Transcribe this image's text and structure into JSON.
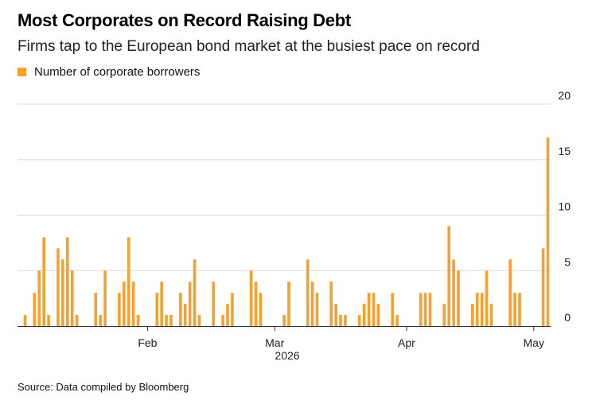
{
  "title": "Most Corporates on Record Raising Debt",
  "subtitle": "Firms tap to the European bond market at the busiest pace on record",
  "source": "Source: Data compiled by Bloomberg",
  "colors": {
    "bar": "#f5a030",
    "grid": "#d9d9d9",
    "axis": "#333333"
  },
  "chart_data": {
    "type": "bar",
    "legend": [
      "Number of corporate borrowers"
    ],
    "legend_position": "top-left",
    "xlabel": "2026",
    "ylabel": "",
    "ylim": [
      0,
      20
    ],
    "y_ticks": [
      0,
      5,
      10,
      15,
      20
    ],
    "grid": true,
    "month_ticks": [
      {
        "label": "Feb",
        "day": 26
      },
      {
        "label": "Mar",
        "day": 53
      },
      {
        "label": "Apr",
        "day": 81
      },
      {
        "label": "May",
        "day": 108
      }
    ],
    "series": [
      {
        "name": "Number of corporate borrowers",
        "values": [
          1,
          0,
          3,
          5,
          8,
          1,
          0,
          7,
          6,
          8,
          5,
          1,
          0,
          0,
          0,
          3,
          1,
          5,
          0,
          0,
          3,
          4,
          8,
          4,
          1,
          0,
          0,
          0,
          3,
          4,
          1,
          1,
          0,
          3,
          2,
          4,
          6,
          1,
          0,
          0,
          4,
          0,
          1,
          2,
          3,
          0,
          0,
          0,
          5,
          4,
          3,
          0,
          0,
          0,
          0,
          1,
          4,
          0,
          0,
          0,
          6,
          4,
          3,
          0,
          0,
          4,
          2,
          1,
          1,
          0,
          0,
          1,
          2,
          3,
          3,
          2,
          0,
          0,
          3,
          1,
          0,
          0,
          0,
          0,
          3,
          3,
          3,
          0,
          0,
          2,
          9,
          6,
          5,
          0,
          0,
          2,
          3,
          3,
          5,
          2,
          0,
          0,
          0,
          6,
          3,
          3,
          0,
          0,
          0,
          0,
          7,
          17
        ]
      }
    ]
  }
}
